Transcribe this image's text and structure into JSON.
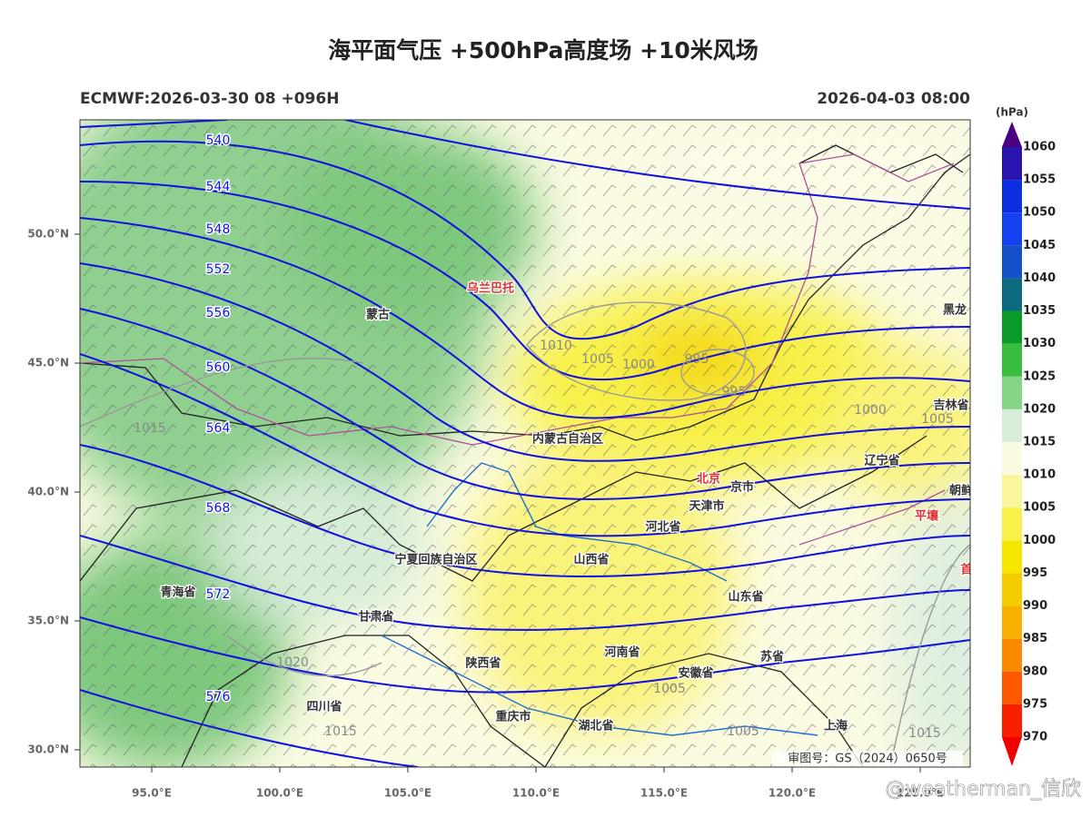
{
  "title": "海平面气压 +500hPa高度场 +10米风场",
  "run_info": "ECMWF:2026-03-30 08 +096H",
  "valid_time": "2026-04-03 08:00",
  "lat_ticks": [
    "50.0°N",
    "45.0°N",
    "40.0°N",
    "35.0°N",
    "30.0°N"
  ],
  "lon_ticks": [
    "95.0°E",
    "100.0°E",
    "105.0°E",
    "110.0°E",
    "115.0°E",
    "120.0°E",
    "125.0°E"
  ],
  "colorbar": {
    "unit": "(hPa)",
    "levels": [
      1060,
      1055,
      1050,
      1045,
      1040,
      1035,
      1030,
      1025,
      1020,
      1015,
      1010,
      1005,
      1000,
      995,
      990,
      985,
      980,
      975,
      970
    ],
    "colors": [
      "#4b0082",
      "#2a14b0",
      "#0a2ee0",
      "#1440f0",
      "#1450c8",
      "#0c6a80",
      "#0a9a2a",
      "#38bd3c",
      "#86d486",
      "#d8eed8",
      "#fbfbe4",
      "#fbf59c",
      "#f7f14a",
      "#f6e600",
      "#f5cc00",
      "#f9b000",
      "#fb8a00",
      "#fb5a00",
      "#f81e00",
      "#f00000"
    ]
  },
  "height_labels": [
    "540",
    "544",
    "548",
    "552",
    "556",
    "560",
    "564",
    "568",
    "572",
    "576"
  ],
  "pressure_labels": [
    "1015",
    "1010",
    "1005",
    "1000",
    "995",
    "995",
    "1000",
    "1005",
    "1020",
    "1015",
    "1005",
    "1005",
    "1015"
  ],
  "places": [
    "蒙古",
    "乌兰巴托",
    "内蒙古自治区",
    "北京",
    "京市",
    "天津市",
    "河北省",
    "山西省",
    "宁夏回族自治区",
    "甘肃省",
    "青海省",
    "陕西省",
    "河南省",
    "山东省",
    "安徽省",
    "苏省",
    "湖北省",
    "重庆市",
    "四川省",
    "辽宁省",
    "吉林省",
    "黑龙",
    "朝鲜",
    "平壤",
    "首",
    "上海"
  ],
  "review_number": "审图号：GS（2024）0650号",
  "watermark": "@weatherman_信欣"
}
